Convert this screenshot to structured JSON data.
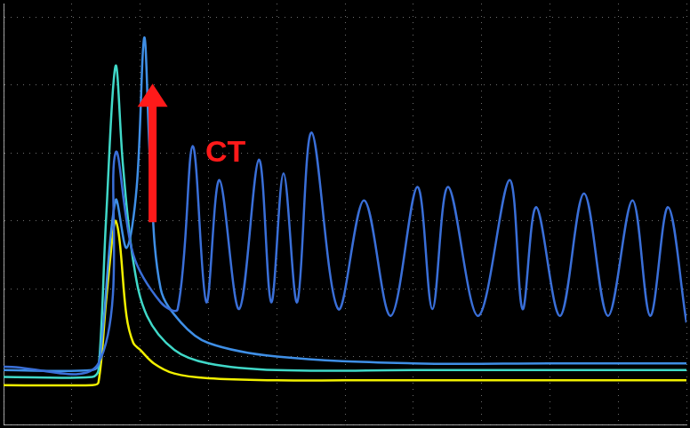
{
  "chart_data": {
    "type": "line",
    "xlim": [
      0,
      10
    ],
    "xticks": [
      0,
      1,
      2,
      3,
      4,
      5,
      6,
      7,
      8,
      9,
      10
    ],
    "ylim": [
      0,
      6.2
    ],
    "yticks": [
      0,
      1,
      2,
      3,
      4,
      5,
      6
    ],
    "grid": true,
    "tick_labels": false,
    "series": [
      {
        "color": "#3a6fd8",
        "x": [
          0,
          1.39,
          1.64,
          1.9,
          2.3,
          2.55,
          2.77,
          2.97,
          3.16,
          3.45,
          3.74,
          3.92,
          4.1,
          4.3,
          4.51,
          4.9,
          5.28,
          5.67,
          6.06,
          6.28,
          6.51,
          6.95,
          7.41,
          7.6,
          7.8,
          8.15,
          8.5,
          8.85,
          9.21,
          9.47,
          9.73,
          10
        ],
        "values": [
          0.85,
          0.9,
          4.0,
          2.5,
          1.8,
          1.7,
          4.1,
          1.8,
          3.6,
          1.7,
          3.9,
          1.8,
          3.7,
          1.8,
          4.3,
          1.7,
          3.3,
          1.6,
          3.5,
          1.7,
          3.5,
          1.6,
          3.6,
          1.7,
          3.2,
          1.6,
          3.4,
          1.6,
          3.3,
          1.6,
          3.2,
          1.5
        ]
      },
      {
        "color": "#3f8fe6",
        "x": [
          0,
          1.3,
          1.4,
          1.64,
          1.8,
          1.95,
          2.06,
          2.15,
          2.3,
          2.6,
          3,
          4,
          6,
          8,
          10
        ],
        "values": [
          0.8,
          0.8,
          0.9,
          3.3,
          2.6,
          3.5,
          5.7,
          3.8,
          2.0,
          1.5,
          1.2,
          1.0,
          0.9,
          0.9,
          0.9
        ]
      },
      {
        "color": "#40d8c8",
        "x": [
          0,
          1.3,
          1.39,
          1.5,
          1.64,
          1.75,
          1.9,
          2.1,
          2.5,
          3,
          4,
          6,
          8,
          10
        ],
        "values": [
          0.7,
          0.7,
          0.8,
          3.0,
          5.28,
          3.8,
          2.4,
          1.6,
          1.1,
          0.9,
          0.8,
          0.8,
          0.8,
          0.8
        ]
      },
      {
        "color": "#f2f000",
        "x": [
          0,
          1.3,
          1.39,
          1.5,
          1.6,
          1.64,
          1.7,
          1.8,
          1.9,
          2.0,
          2.2,
          2.5,
          3.0,
          4,
          5,
          6,
          7,
          8,
          9,
          10
        ],
        "values": [
          0.58,
          0.58,
          0.62,
          1.8,
          2.8,
          3.0,
          2.7,
          1.6,
          1.2,
          1.1,
          0.9,
          0.75,
          0.68,
          0.65,
          0.65,
          0.65,
          0.65,
          0.65,
          0.65,
          0.65
        ]
      }
    ],
    "annotations": [
      {
        "text": "CT",
        "x": 3.25,
        "y": 4.0,
        "color": "#ff1a1a"
      }
    ]
  }
}
